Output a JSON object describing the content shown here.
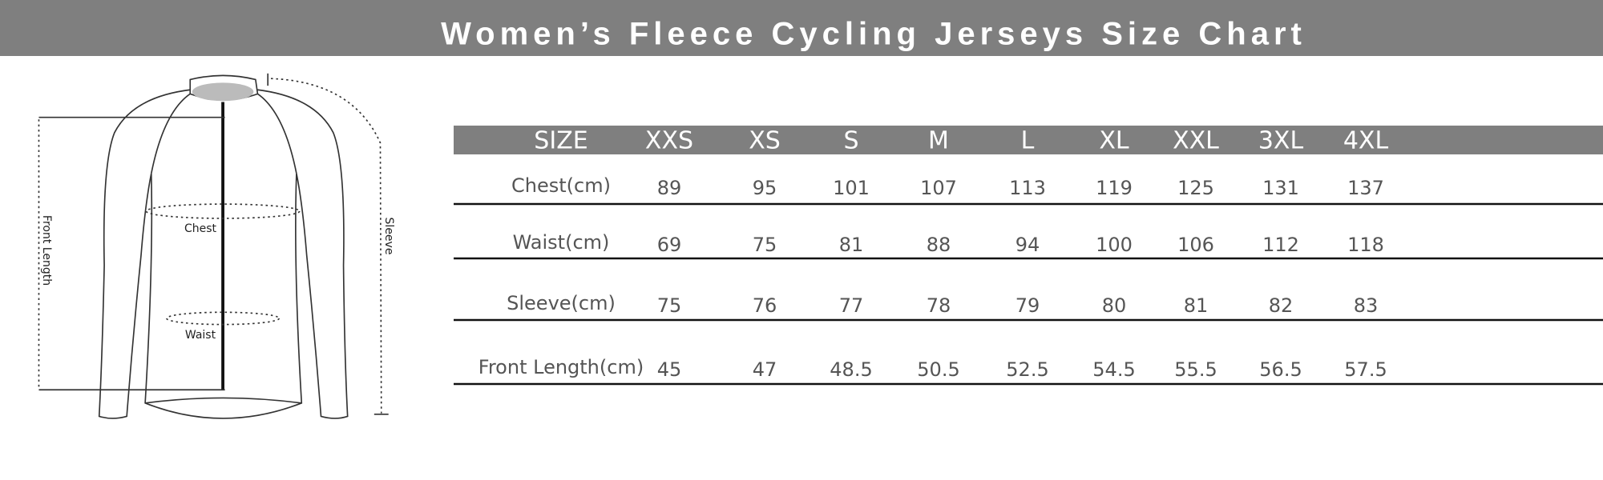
{
  "header": {
    "title": "Women’s Fleece Cycling Jerseys Size Chart"
  },
  "diagram": {
    "labels": {
      "front_length": "Front Length",
      "chest": "Chest",
      "waist": "Waist",
      "sleeve": "Sleeve"
    }
  },
  "table": {
    "columns": [
      "SIZE",
      "XXS",
      "XS",
      "S",
      "M",
      "L",
      "XL",
      "XXL",
      "3XL",
      "4XL"
    ],
    "rows": [
      {
        "label": "Chest(cm)",
        "values": [
          89,
          95,
          101,
          107,
          113,
          119,
          125,
          131,
          137
        ]
      },
      {
        "label": "Waist(cm)",
        "values": [
          69,
          75,
          81,
          88,
          94,
          100,
          106,
          112,
          118
        ]
      },
      {
        "label": "Sleeve(cm)",
        "values": [
          75,
          76,
          77,
          78,
          79,
          80,
          81,
          82,
          83
        ]
      },
      {
        "label": "Front Length(cm)",
        "values": [
          45,
          47,
          48.5,
          50.5,
          52.5,
          54.5,
          55.5,
          56.5,
          57.5
        ]
      }
    ]
  }
}
